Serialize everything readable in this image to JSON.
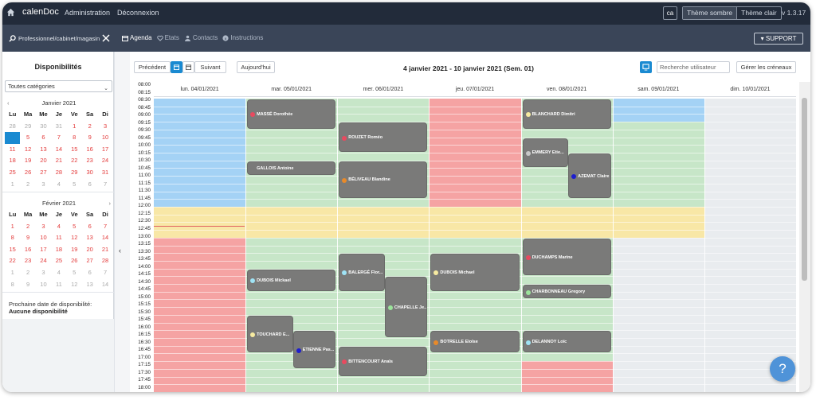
{
  "header": {
    "app_name": "calenDoc",
    "admin": "Administration",
    "logout": "Déconnexion",
    "lang": "ca",
    "theme_dark": "Thème sombre",
    "theme_light": "Thème clair",
    "version": "v 1.3.17"
  },
  "subnav": {
    "pro_select": "Professionnel/cabinet/magasin",
    "agenda": "Agenda",
    "etats": "Etats",
    "contacts": "Contacts",
    "instructions": "Instructions",
    "support": "SUPPORT"
  },
  "sidebar": {
    "title": "Disponibilités",
    "category": "Toutes catégories",
    "weekdays": [
      "Lu",
      "Ma",
      "Me",
      "Je",
      "Ve",
      "Sa",
      "Di"
    ],
    "month1": {
      "label": "Janvier 2021",
      "days": [
        [
          "28",
          "29",
          "30",
          "31",
          "1",
          "2",
          "3"
        ],
        [
          "4",
          "5",
          "6",
          "7",
          "8",
          "9",
          "10"
        ],
        [
          "11",
          "12",
          "13",
          "14",
          "15",
          "16",
          "17"
        ],
        [
          "18",
          "19",
          "20",
          "21",
          "22",
          "23",
          "24"
        ],
        [
          "25",
          "26",
          "27",
          "28",
          "29",
          "30",
          "31"
        ],
        [
          "1",
          "2",
          "3",
          "4",
          "5",
          "6",
          "7"
        ]
      ]
    },
    "month2": {
      "label": "Février 2021",
      "days": [
        [
          "1",
          "2",
          "3",
          "4",
          "5",
          "6",
          "7"
        ],
        [
          "8",
          "9",
          "10",
          "11",
          "12",
          "13",
          "14"
        ],
        [
          "15",
          "16",
          "17",
          "18",
          "19",
          "20",
          "21"
        ],
        [
          "22",
          "23",
          "24",
          "25",
          "26",
          "27",
          "28"
        ],
        [
          "1",
          "2",
          "3",
          "4",
          "5",
          "6",
          "7"
        ],
        [
          "8",
          "9",
          "10",
          "11",
          "12",
          "13",
          "14"
        ]
      ]
    },
    "next_label": "Prochaine date de disponibilité:",
    "next_value": "Aucune disponibilité"
  },
  "toolbar": {
    "prev": "Précédent",
    "next": "Suivant",
    "today": "Aujourd'hui",
    "title": "4 janvier 2021 - 10 janvier 2021 (Sem. 01)",
    "search_placeholder": "Recherche utilisateur",
    "manage": "Gérer les créneaux"
  },
  "days": [
    "lun. 04/01/2021",
    "mar. 05/01/2021",
    "mer. 06/01/2021",
    "jeu. 07/01/2021",
    "ven. 08/01/2021",
    "sam. 09/01/2021",
    "dim. 10/01/2021"
  ],
  "times": [
    "08:00",
    "08:15",
    "08:30",
    "08:45",
    "09:00",
    "09:15",
    "09:30",
    "09:45",
    "10:00",
    "10:15",
    "10:30",
    "10:45",
    "11:00",
    "11:15",
    "11:30",
    "11:45",
    "12:00",
    "12:15",
    "12:30",
    "12:45",
    "13:00",
    "13:15",
    "13:30",
    "13:45",
    "14:00",
    "14:15",
    "14:30",
    "14:45",
    "15:00",
    "15:15",
    "15:30",
    "15:45",
    "16:00",
    "16:15",
    "16:30",
    "16:45",
    "17:00",
    "17:15",
    "17:30",
    "17:45",
    "18:00"
  ],
  "colors": {
    "blue": "#a4d2f5",
    "green": "#c7e6c8",
    "red": "#f5a3a3",
    "yellow": "#f8e7a6",
    "grey": "#e9ecef",
    "event": "#7a7a79"
  },
  "backgrounds": [
    {
      "day": 0,
      "from": "08:30",
      "to": "12:00",
      "color": "blue"
    },
    {
      "day": 0,
      "from": "12:00",
      "to": "13:00",
      "color": "yellow"
    },
    {
      "day": 0,
      "from": "13:00",
      "to": "18:00",
      "color": "red"
    },
    {
      "day": 1,
      "from": "08:30",
      "to": "12:00",
      "color": "green"
    },
    {
      "day": 1,
      "from": "12:00",
      "to": "13:00",
      "color": "yellow"
    },
    {
      "day": 1,
      "from": "13:00",
      "to": "18:00",
      "color": "green"
    },
    {
      "day": 2,
      "from": "08:30",
      "to": "12:00",
      "color": "green"
    },
    {
      "day": 2,
      "from": "12:00",
      "to": "13:00",
      "color": "yellow"
    },
    {
      "day": 2,
      "from": "13:00",
      "to": "18:00",
      "color": "green"
    },
    {
      "day": 3,
      "from": "08:30",
      "to": "12:00",
      "color": "red"
    },
    {
      "day": 3,
      "from": "12:00",
      "to": "13:00",
      "color": "yellow"
    },
    {
      "day": 3,
      "from": "13:00",
      "to": "18:00",
      "color": "green"
    },
    {
      "day": 4,
      "from": "08:30",
      "to": "12:00",
      "color": "green"
    },
    {
      "day": 4,
      "from": "12:00",
      "to": "13:00",
      "color": "yellow"
    },
    {
      "day": 4,
      "from": "13:00",
      "to": "17:00",
      "color": "green"
    },
    {
      "day": 4,
      "from": "17:00",
      "to": "18:00",
      "color": "red"
    },
    {
      "day": 5,
      "from": "08:30",
      "to": "09:15",
      "color": "blue"
    },
    {
      "day": 5,
      "from": "09:15",
      "to": "12:00",
      "color": "green"
    },
    {
      "day": 5,
      "from": "12:00",
      "to": "13:00",
      "color": "yellow"
    },
    {
      "day": 5,
      "from": "13:00",
      "to": "18:00",
      "color": "grey"
    },
    {
      "day": 6,
      "from": "08:30",
      "to": "18:00",
      "color": "grey"
    }
  ],
  "events": [
    {
      "day": 1,
      "col": 0,
      "cols": 1,
      "from": "08:30",
      "to": "09:30",
      "name": "MASSÉ Dorothée",
      "dot": "#e84a5f"
    },
    {
      "day": 1,
      "col": 0,
      "cols": 1,
      "from": "10:30",
      "to": "11:00",
      "name": "GALLOIS Antoine",
      "dot": "#7a7a79"
    },
    {
      "day": 1,
      "col": 0,
      "cols": 1,
      "from": "14:00",
      "to": "14:45",
      "name": "DUBOIS Mickael",
      "dot": "#9fe3f5"
    },
    {
      "day": 1,
      "col": 0,
      "cols": 1,
      "from": "15:30",
      "to": "16:45",
      "name": "TOUCHARD E...",
      "dot": "#f6eaa0"
    },
    {
      "day": 1,
      "col": 1,
      "cols": 1,
      "from": "16:00",
      "to": "17:15",
      "name": "ETIENNE Pas...",
      "dot": "#1e1ecf"
    },
    {
      "day": 2,
      "col": 0,
      "cols": 1,
      "from": "09:15",
      "to": "10:15",
      "name": "ROUZET Roméo",
      "dot": "#e84a5f"
    },
    {
      "day": 2,
      "col": 0,
      "cols": 1,
      "from": "10:30",
      "to": "11:45",
      "name": "BÉLIVEAU Blandine",
      "dot": "#e88a2a"
    },
    {
      "day": 2,
      "col": 0,
      "cols": 1,
      "from": "13:30",
      "to": "14:45",
      "name": "BALERGÉ Flor...",
      "dot": "#9fe3f5"
    },
    {
      "day": 2,
      "col": 1,
      "cols": 1,
      "from": "14:15",
      "to": "16:15",
      "name": "CHAPELLE Je...",
      "dot": "#9be39b"
    },
    {
      "day": 2,
      "col": 0,
      "cols": 1,
      "from": "16:30",
      "to": "17:30",
      "name": "BITTENCOURT Anaïs",
      "dot": "#e84a5f"
    },
    {
      "day": 3,
      "col": 0,
      "cols": 1,
      "from": "13:30",
      "to": "14:45",
      "name": "DUBOIS Michael",
      "dot": "#f6eaa0"
    },
    {
      "day": 3,
      "col": 0,
      "cols": 1,
      "from": "16:00",
      "to": "16:45",
      "name": "BOTRELLE Eloïse",
      "dot": "#e88a2a"
    },
    {
      "day": 4,
      "col": 0,
      "cols": 1,
      "from": "08:30",
      "to": "09:30",
      "name": "BLANCHARD Dimitri",
      "dot": "#f6eaa0"
    },
    {
      "day": 4,
      "col": 0,
      "cols": 1,
      "from": "09:45",
      "to": "10:45",
      "name": "EMMERY Etie...",
      "dot": "#c8c8c8"
    },
    {
      "day": 4,
      "col": 1,
      "cols": 1,
      "from": "10:15",
      "to": "11:45",
      "name": "AZEMAT Claire",
      "dot": "#1e1ecf"
    },
    {
      "day": 4,
      "col": 0,
      "cols": 1,
      "from": "13:00",
      "to": "14:15",
      "name": "DUCHAMPS Marine",
      "dot": "#e84a5f"
    },
    {
      "day": 4,
      "col": 0,
      "cols": 1,
      "from": "14:30",
      "to": "15:00",
      "name": "CHARBONNEAU Gregory",
      "dot": "#9be39b"
    },
    {
      "day": 4,
      "col": 0,
      "cols": 1,
      "from": "16:00",
      "to": "16:45",
      "name": "DELANNOY Loïc",
      "dot": "#9fe3f5"
    }
  ]
}
